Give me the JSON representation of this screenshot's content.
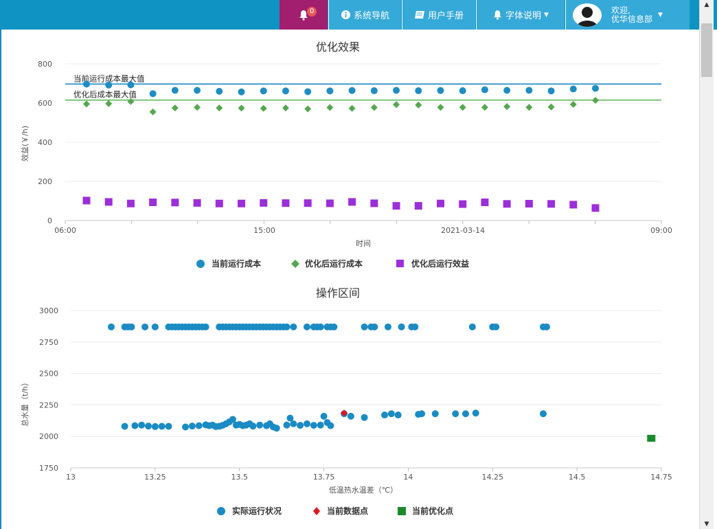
{
  "header": {
    "notification_count": "0",
    "nav_items": [
      {
        "label": "系统导航",
        "icon": "info-circle-icon"
      },
      {
        "label": "用户手册",
        "icon": "book-icon"
      },
      {
        "label": "字体说明",
        "icon": "bell-icon",
        "dropdown": true
      }
    ],
    "welcome_line1": "欢迎,",
    "welcome_line2": "优华信息部",
    "colors": {
      "bar": "#0f93c3",
      "nav": "#35a9d8",
      "bell_bg": "#a21e6e",
      "badge": "#e45b5b"
    }
  },
  "chart_data": [
    {
      "type": "scatter",
      "title": "优化效果",
      "xlabel": "时间",
      "ylabel": "效益(￥/h)",
      "x_ticks": [
        "06:00",
        "15:00",
        "2021-03-14",
        "09:00"
      ],
      "ylim": [
        0,
        800
      ],
      "y_ticks": [
        0,
        200,
        400,
        600,
        800
      ],
      "grid": true,
      "legend_position": "bottom",
      "reference_lines": [
        {
          "label": "当前运行成本最大值",
          "value": 697,
          "color": "#1a8ac4"
        },
        {
          "label": "优化后成本最大值",
          "value": 615,
          "color": "#5fb75f"
        }
      ],
      "series": [
        {
          "name": "当前运行成本",
          "marker": "circle",
          "color": "#1f8dc4",
          "values": [
            697,
            692,
            693,
            648,
            665,
            665,
            660,
            657,
            662,
            662,
            658,
            662,
            664,
            663,
            665,
            663,
            664,
            663,
            668,
            665,
            665,
            662,
            672,
            675
          ]
        },
        {
          "name": "优化后运行成本",
          "marker": "diamond",
          "color": "#55a84f",
          "values": [
            595,
            597,
            608,
            555,
            575,
            578,
            575,
            574,
            573,
            575,
            570,
            577,
            573,
            577,
            592,
            590,
            578,
            578,
            578,
            582,
            578,
            580,
            593,
            614
          ]
        },
        {
          "name": "优化后运行效益",
          "marker": "square",
          "color": "#9b2fd9",
          "values": [
            102,
            95,
            87,
            93,
            92,
            90,
            87,
            87,
            90,
            89,
            89,
            88,
            95,
            88,
            75,
            75,
            87,
            84,
            93,
            85,
            86,
            85,
            81,
            64
          ]
        }
      ]
    },
    {
      "type": "scatter",
      "title": "操作区间",
      "xlabel": "低温热水温差（℃）",
      "ylabel": "总水量（t/h）",
      "xlim": [
        13,
        14.75
      ],
      "x_ticks": [
        "13",
        "13.25",
        "13.5",
        "13.75",
        "14",
        "14.25",
        "14.5",
        "14.75"
      ],
      "ylim": [
        1750,
        3000
      ],
      "y_ticks": [
        1750,
        2000,
        2250,
        2500,
        2750,
        3000
      ],
      "grid": true,
      "legend_position": "bottom",
      "series": [
        {
          "name": "实际运行状况",
          "marker": "circle",
          "color": "#1b8bc3",
          "points": [
            [
              13.12,
              2870
            ],
            [
              13.16,
              2870
            ],
            [
              13.17,
              2870
            ],
            [
              13.18,
              2870
            ],
            [
              13.22,
              2870
            ],
            [
              13.25,
              2870
            ],
            [
              13.29,
              2870
            ],
            [
              13.3,
              2870
            ],
            [
              13.31,
              2870
            ],
            [
              13.32,
              2870
            ],
            [
              13.33,
              2870
            ],
            [
              13.34,
              2870
            ],
            [
              13.35,
              2870
            ],
            [
              13.36,
              2870
            ],
            [
              13.37,
              2870
            ],
            [
              13.38,
              2870
            ],
            [
              13.39,
              2870
            ],
            [
              13.4,
              2870
            ],
            [
              13.44,
              2870
            ],
            [
              13.45,
              2870
            ],
            [
              13.46,
              2870
            ],
            [
              13.47,
              2870
            ],
            [
              13.48,
              2870
            ],
            [
              13.49,
              2870
            ],
            [
              13.5,
              2870
            ],
            [
              13.51,
              2870
            ],
            [
              13.52,
              2870
            ],
            [
              13.53,
              2870
            ],
            [
              13.54,
              2870
            ],
            [
              13.55,
              2870
            ],
            [
              13.56,
              2870
            ],
            [
              13.57,
              2870
            ],
            [
              13.58,
              2870
            ],
            [
              13.59,
              2870
            ],
            [
              13.6,
              2870
            ],
            [
              13.61,
              2870
            ],
            [
              13.62,
              2870
            ],
            [
              13.63,
              2870
            ],
            [
              13.64,
              2870
            ],
            [
              13.66,
              2870
            ],
            [
              13.7,
              2870
            ],
            [
              13.72,
              2870
            ],
            [
              13.73,
              2870
            ],
            [
              13.74,
              2870
            ],
            [
              13.76,
              2870
            ],
            [
              13.77,
              2870
            ],
            [
              13.78,
              2870
            ],
            [
              13.87,
              2870
            ],
            [
              13.89,
              2870
            ],
            [
              13.9,
              2870
            ],
            [
              13.94,
              2870
            ],
            [
              13.98,
              2870
            ],
            [
              14.01,
              2870
            ],
            [
              14.02,
              2870
            ],
            [
              14.19,
              2870
            ],
            [
              14.25,
              2870
            ],
            [
              14.26,
              2870
            ],
            [
              14.4,
              2870
            ],
            [
              14.41,
              2870
            ],
            [
              13.16,
              2080
            ],
            [
              13.19,
              2085
            ],
            [
              13.21,
              2090
            ],
            [
              13.23,
              2082
            ],
            [
              13.25,
              2078
            ],
            [
              13.27,
              2080
            ],
            [
              13.29,
              2080
            ],
            [
              13.34,
              2075
            ],
            [
              13.36,
              2082
            ],
            [
              13.38,
              2085
            ],
            [
              13.4,
              2092
            ],
            [
              13.41,
              2085
            ],
            [
              13.42,
              2090
            ],
            [
              13.43,
              2078
            ],
            [
              13.44,
              2080
            ],
            [
              13.45,
              2088
            ],
            [
              13.46,
              2100
            ],
            [
              13.47,
              2115
            ],
            [
              13.48,
              2135
            ],
            [
              13.49,
              2090
            ],
            [
              13.5,
              2095
            ],
            [
              13.51,
              2085
            ],
            [
              13.52,
              2090
            ],
            [
              13.53,
              2100
            ],
            [
              13.54,
              2082
            ],
            [
              13.56,
              2090
            ],
            [
              13.58,
              2085
            ],
            [
              13.59,
              2100
            ],
            [
              13.6,
              2075
            ],
            [
              13.61,
              2065
            ],
            [
              13.64,
              2090
            ],
            [
              13.65,
              2145
            ],
            [
              13.66,
              2100
            ],
            [
              13.68,
              2088
            ],
            [
              13.7,
              2100
            ],
            [
              13.72,
              2088
            ],
            [
              13.74,
              2090
            ],
            [
              13.75,
              2160
            ],
            [
              13.76,
              2110
            ],
            [
              13.77,
              2085
            ],
            [
              13.81,
              2180
            ],
            [
              13.83,
              2160
            ],
            [
              13.87,
              2150
            ],
            [
              13.93,
              2170
            ],
            [
              13.95,
              2180
            ],
            [
              13.97,
              2170
            ],
            [
              14.03,
              2175
            ],
            [
              14.04,
              2180
            ],
            [
              14.08,
              2180
            ],
            [
              14.14,
              2180
            ],
            [
              14.17,
              2180
            ],
            [
              14.2,
              2185
            ],
            [
              14.4,
              2180
            ]
          ]
        },
        {
          "name": "当前数据点",
          "marker": "diamond",
          "color": "#e0161e",
          "points": [
            [
              13.81,
              2185
            ]
          ]
        },
        {
          "name": "当前优化点",
          "marker": "square",
          "color": "#1a8a2a",
          "points": [
            [
              14.72,
              1985
            ]
          ]
        }
      ]
    }
  ]
}
